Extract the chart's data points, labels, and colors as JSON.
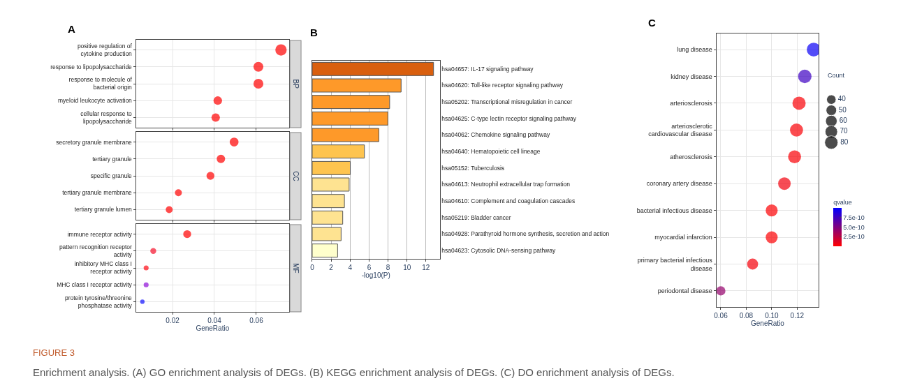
{
  "chart_data": [
    {
      "type": "bubble",
      "orientation": "horizontal",
      "title": "A",
      "annotations": [
        "BP"
      ],
      "categories": [
        "positive regulation of\ncytokine production",
        "response to lipopolysaccharide",
        "response to molecule of\nbacterial origin",
        "myeloid leukocyte activation",
        "cellular response to\nlipopolysaccharide"
      ],
      "values": [
        0.0718,
        0.061,
        0.061,
        0.0416,
        0.0406
      ],
      "sizes": [
        1,
        0.76,
        0.76,
        0.57,
        0.55
      ],
      "colors": [
        "#ff0000",
        "#ff0000",
        "#ff0000",
        "#ff0000",
        "#ff0000"
      ],
      "xlim": [
        0.0025,
        0.0757
      ],
      "xticks": [
        0.02,
        0.04,
        0.06
      ],
      "grid": true,
      "marker": "circle",
      "tick_labels": "y"
    },
    {
      "type": "bubble",
      "orientation": "horizontal",
      "annotations": [
        "CC"
      ],
      "categories": [
        "secretory granule membrane",
        "tertiary granule",
        "specific granule",
        "tertiary granule membrane",
        "tertiary granule lumen"
      ],
      "values": [
        0.0494,
        0.0431,
        0.0381,
        0.0228,
        0.0184
      ],
      "sizes": [
        1,
        0.9,
        0.79,
        0.61,
        0.61
      ],
      "colors": [
        "#ff0000",
        "#ff0000",
        "#ff0000",
        "#ff0000",
        "#ff0000"
      ],
      "xlim": [
        0.0025,
        0.0757
      ],
      "xticks": [
        0.02,
        0.04,
        0.06
      ],
      "grid": true,
      "marker": "circle",
      "tick_labels": "y"
    },
    {
      "type": "bubble",
      "orientation": "horizontal",
      "annotations": [
        "MF"
      ],
      "xlabel": "GeneRatio",
      "categories": [
        "immune receptor activity",
        "pattern recognition receptor\nactivity",
        "inhibitory MHC class I\nreceptor activity",
        "MHC class I receptor activity",
        "protein tyrosine/threonine\nphosphatase activity"
      ],
      "values": [
        0.027,
        0.0108,
        0.0074,
        0.0074,
        0.0056
      ],
      "sizes": [
        1,
        0.56,
        0.4,
        0.4,
        0.31
      ],
      "colors": [
        "#ff0000",
        "#f5102a",
        "#ff0a14",
        "#9010d8",
        "#1010ff"
      ],
      "xlim": [
        0.0025,
        0.0757
      ],
      "xticks": [
        0.02,
        0.04,
        0.06
      ],
      "grid": true,
      "marker": "circle"
    },
    {
      "type": "bar",
      "title": "B",
      "orientation": "horizontal",
      "xlabel": "-log10(P)",
      "categories": [
        "hsa04657: IL-17 signaling pathway",
        "hsa04620: Toll-like receptor signaling pathway",
        "hsa05202: Transcriptional misregulation in cancer",
        "hsa04625: C-type lectin receptor signaling pathway",
        "hsa04062: Chemokine signaling pathway",
        "hsa04640: Hematopoietic cell lineage",
        "hsa05152: Tuberculosis",
        "hsa04613: Neutrophil extracellular trap formation",
        "hsa04610: Complement and coagulation cascades",
        "hsa05219: Bladder cancer",
        "hsa04928: Parathyroid hormone synthesis, secretion and action",
        "hsa04623: Cytosolic DNA-sensing pathway"
      ],
      "values": [
        12.8,
        9.38,
        8.17,
        7.98,
        7.03,
        5.51,
        4.02,
        3.9,
        3.4,
        3.22,
        3.05,
        2.68
      ],
      "colors": [
        "#d95f0e",
        "#fe9929",
        "#fe9929",
        "#fe9929",
        "#fe9929",
        "#fec44f",
        "#fec44f",
        "#fee391",
        "#fee391",
        "#fee391",
        "#fee391",
        "#ffffcc"
      ],
      "xlim": [
        0,
        13.45
      ],
      "xticks": [
        0,
        2,
        4,
        6,
        8,
        10,
        12
      ],
      "grid": "x"
    },
    {
      "type": "bubble",
      "orientation": "horizontal",
      "title": "C",
      "xlabel": "GeneRatio",
      "categories": [
        "lung disease",
        "kidney disease",
        "arteriosclerosis",
        "arteriosclerotic\ncardiovascular disease",
        "atherosclerosis",
        "coronary artery disease",
        "bacterial infectious disease",
        "myocardial infarction",
        "primary bacterial infectious\ndisease",
        "periodontal disease"
      ],
      "values": [
        0.133,
        0.126,
        0.1215,
        0.1195,
        0.118,
        0.11,
        0.1,
        0.1,
        0.085,
        0.06
      ],
      "sizes": [
        85,
        81,
        78,
        76,
        75,
        70,
        64,
        64,
        54,
        38
      ],
      "size_legend": [
        40,
        50,
        60,
        70,
        80
      ],
      "legend_title": "Count",
      "cvalues": [
        9.6e-10,
        7.6e-10,
        2e-11,
        2e-11,
        2e-11,
        5e-11,
        1e-11,
        1e-11,
        4e-11,
        4.2e-10
      ],
      "clim": [
        0,
        1e-09
      ],
      "cticks": [
        {
          "value": 2.5e-10,
          "label": "2.5e-10"
        },
        {
          "value": 5e-10,
          "label": "5.0e-10"
        },
        {
          "value": 7.5e-10,
          "label": "7.5e-10"
        }
      ],
      "clabel": "qvalue",
      "xlim": [
        0.0565,
        0.137
      ],
      "xticks": [
        0.06,
        0.08,
        {
          "value": 0.1,
          "label": "0.10"
        },
        0.12
      ],
      "grid": true,
      "marker": "circle",
      "annotations": [
        "FIGURE 3",
        "Enrichment analysis. (A) GO enrichment analysis of DEGs. (B) KEGG enrichment analysis of DEGs. (C) DO enrichment analysis of DEGs."
      ]
    }
  ]
}
